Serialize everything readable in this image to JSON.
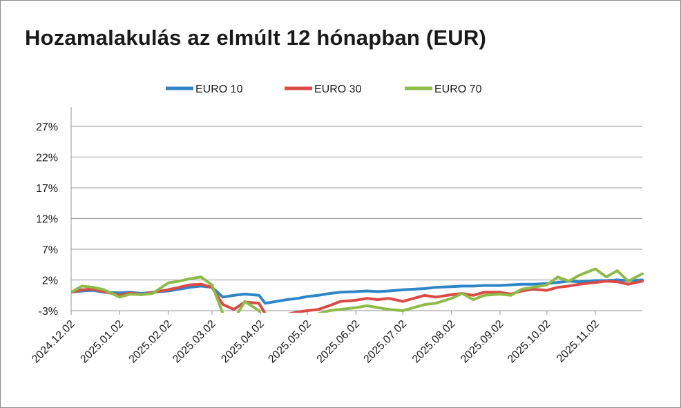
{
  "chart_data": {
    "type": "line",
    "title": "Hozamalakulás az elmúlt 12 hónapban (EUR)",
    "xlabel": "",
    "ylabel": "",
    "ylim": [
      -3,
      30
    ],
    "y_ticks": [
      "-3%",
      "2%",
      "7%",
      "12%",
      "17%",
      "22%",
      "27%"
    ],
    "x_ticks": [
      "2024.12.02",
      "2025.01.02",
      "2025.02.02",
      "2025.03.02",
      "2025.04.02",
      "2025.05.02",
      "2025.06.02",
      "2025.07.02",
      "2025.08.02",
      "2025.09.02",
      "2025.10.02",
      "2025.11.02"
    ],
    "x_range": [
      "2024.12.02",
      "2025.12.02"
    ],
    "grid": true,
    "legend_position": "top",
    "series": [
      {
        "name": "EURO 10",
        "color": "#2e86c8",
        "x": [
          "2024.12.02",
          "2024.12.09",
          "2024.12.16",
          "2024.12.23",
          "2025.01.02",
          "2025.01.09",
          "2025.01.16",
          "2025.01.23",
          "2025.02.02",
          "2025.02.09",
          "2025.02.16",
          "2025.02.23",
          "2025.03.02",
          "2025.03.09",
          "2025.03.16",
          "2025.03.23",
          "2025.04.01",
          "2025.04.05",
          "2025.04.12",
          "2025.04.19",
          "2025.04.26",
          "2025.05.02",
          "2025.05.09",
          "2025.05.16",
          "2025.05.23",
          "2025.06.02",
          "2025.06.09",
          "2025.06.16",
          "2025.06.23",
          "2025.07.02",
          "2025.07.09",
          "2025.07.16",
          "2025.07.23",
          "2025.08.02",
          "2025.08.09",
          "2025.08.16",
          "2025.08.23",
          "2025.09.02",
          "2025.09.09",
          "2025.09.16",
          "2025.09.23",
          "2025.10.02",
          "2025.10.09",
          "2025.10.16",
          "2025.10.23",
          "2025.11.02",
          "2025.11.09",
          "2025.11.16",
          "2025.11.23",
          "2025.12.02"
        ],
        "values": [
          0,
          0.2,
          0.3,
          0,
          -0.1,
          0,
          -0.2,
          0,
          0.2,
          0.5,
          0.8,
          1.0,
          0.8,
          -0.8,
          -0.5,
          -0.3,
          -0.5,
          -1.8,
          -1.5,
          -1.2,
          -1.0,
          -0.7,
          -0.5,
          -0.2,
          0,
          0.1,
          0.2,
          0.1,
          0.2,
          0.4,
          0.5,
          0.6,
          0.8,
          0.9,
          1.0,
          1.0,
          1.1,
          1.1,
          1.2,
          1.3,
          1.3,
          1.4,
          1.6,
          1.8,
          1.7,
          1.9,
          1.9,
          2.0,
          1.9,
          2.0
        ]
      },
      {
        "name": "EURO 30",
        "color": "#dc4a45",
        "x": [
          "2024.12.02",
          "2024.12.09",
          "2024.12.16",
          "2024.12.23",
          "2025.01.02",
          "2025.01.09",
          "2025.01.16",
          "2025.01.23",
          "2025.02.02",
          "2025.02.09",
          "2025.02.16",
          "2025.02.23",
          "2025.03.02",
          "2025.03.09",
          "2025.03.16",
          "2025.03.23",
          "2025.04.01",
          "2025.04.05",
          "2025.04.12",
          "2025.04.19",
          "2025.04.26",
          "2025.05.02",
          "2025.05.09",
          "2025.05.16",
          "2025.05.23",
          "2025.06.02",
          "2025.06.09",
          "2025.06.16",
          "2025.06.23",
          "2025.07.02",
          "2025.07.09",
          "2025.07.16",
          "2025.07.23",
          "2025.08.02",
          "2025.08.09",
          "2025.08.16",
          "2025.08.23",
          "2025.09.02",
          "2025.09.09",
          "2025.09.16",
          "2025.09.23",
          "2025.10.02",
          "2025.10.09",
          "2025.10.16",
          "2025.10.23",
          "2025.11.02",
          "2025.11.09",
          "2025.11.16",
          "2025.11.23",
          "2025.12.02"
        ],
        "values": [
          0,
          0.4,
          0.5,
          0.1,
          -0.5,
          -0.1,
          -0.4,
          0,
          0.4,
          0.8,
          1.2,
          1.3,
          0.8,
          -2.0,
          -2.8,
          -1.6,
          -1.8,
          -3.5,
          -3.8,
          -3.6,
          -3.2,
          -3.0,
          -2.8,
          -2.2,
          -1.5,
          -1.3,
          -1.0,
          -1.2,
          -1.0,
          -1.5,
          -1.0,
          -0.5,
          -0.8,
          -0.4,
          -0.2,
          -0.5,
          0,
          0,
          -0.3,
          0.2,
          0.5,
          0.3,
          0.8,
          1.0,
          1.3,
          1.6,
          1.8,
          1.7,
          1.3,
          1.8
        ]
      },
      {
        "name": "EURO 70",
        "color": "#8dbb48",
        "x": [
          "2024.12.02",
          "2024.12.09",
          "2024.12.16",
          "2024.12.23",
          "2025.01.02",
          "2025.01.09",
          "2025.01.16",
          "2025.01.23",
          "2025.02.02",
          "2025.02.09",
          "2025.02.16",
          "2025.02.23",
          "2025.03.02",
          "2025.03.09",
          "2025.03.16",
          "2025.03.23",
          "2025.04.01",
          "2025.04.05",
          "2025.04.12",
          "2025.04.19",
          "2025.04.26",
          "2025.05.02",
          "2025.05.09",
          "2025.05.16",
          "2025.05.23",
          "2025.06.02",
          "2025.06.09",
          "2025.06.16",
          "2025.06.23",
          "2025.07.02",
          "2025.07.09",
          "2025.07.16",
          "2025.07.23",
          "2025.08.02",
          "2025.08.09",
          "2025.08.16",
          "2025.08.23",
          "2025.09.02",
          "2025.09.09",
          "2025.09.16",
          "2025.09.23",
          "2025.10.02",
          "2025.10.09",
          "2025.10.16",
          "2025.10.23",
          "2025.11.02",
          "2025.11.09",
          "2025.11.16",
          "2025.11.23",
          "2025.12.02"
        ],
        "values": [
          0,
          1.0,
          0.8,
          0.4,
          -0.8,
          -0.3,
          -0.4,
          -0.2,
          1.5,
          1.8,
          2.2,
          2.5,
          1.2,
          -3.5,
          -4.5,
          -1.5,
          -3.0,
          -5.0,
          -5.5,
          -5.2,
          -4.8,
          -4.5,
          -3.5,
          -3.0,
          -2.8,
          -2.5,
          -2.2,
          -2.5,
          -2.8,
          -3.0,
          -2.5,
          -2.0,
          -1.8,
          -1.0,
          -0.2,
          -1.2,
          -0.5,
          -0.3,
          -0.5,
          0.5,
          0.8,
          1.2,
          2.5,
          1.8,
          2.8,
          3.8,
          2.5,
          3.5,
          1.8,
          3.0
        ]
      }
    ]
  }
}
